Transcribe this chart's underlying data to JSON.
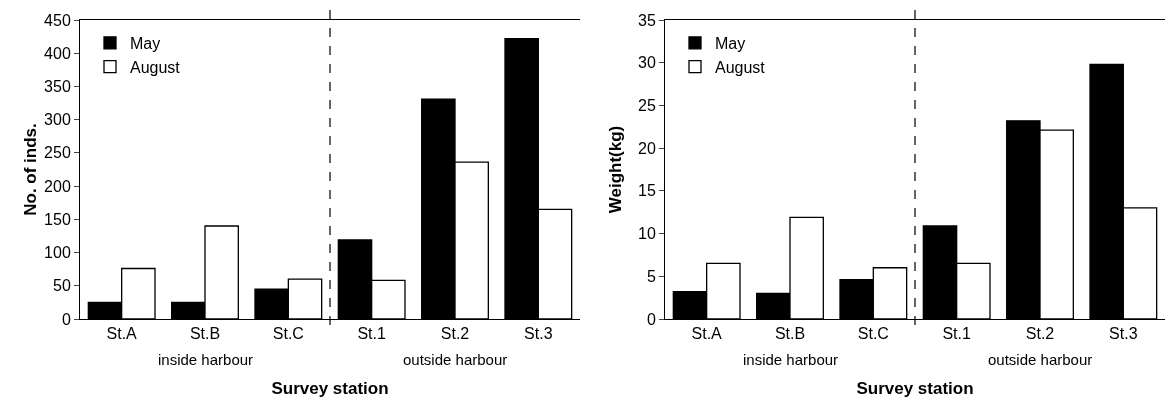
{
  "chart_data": [
    {
      "type": "bar",
      "xlabel": "Survey station",
      "ylabel": "No. of inds.",
      "categories": [
        "St.A",
        "St.B",
        "St.C",
        "St.1",
        "St.2",
        "St.3"
      ],
      "series": [
        {
          "name": "May",
          "color": "#000000",
          "values": [
            25,
            25,
            45,
            119,
            331,
            422
          ]
        },
        {
          "name": "August",
          "color": "#ffffff",
          "values": [
            76,
            140,
            60,
            58,
            236,
            165
          ]
        }
      ],
      "ylim": [
        0,
        450
      ],
      "yticks": [
        0,
        50,
        100,
        150,
        200,
        250,
        300,
        350,
        400,
        450
      ],
      "annotations": [
        "inside harbour",
        "outside harbour"
      ],
      "grid": false,
      "legend": "top left"
    },
    {
      "type": "bar",
      "xlabel": "Survey station",
      "ylabel": "Weight(kg)",
      "categories": [
        "St.A",
        "St.B",
        "St.C",
        "St.1",
        "St.2",
        "St.3"
      ],
      "series": [
        {
          "name": "May",
          "color": "#000000",
          "values": [
            3.2,
            3.0,
            4.6,
            10.9,
            23.2,
            29.8
          ]
        },
        {
          "name": "August",
          "color": "#ffffff",
          "values": [
            6.5,
            11.9,
            6.0,
            6.5,
            22.1,
            13.0
          ]
        }
      ],
      "ylim": [
        0,
        35
      ],
      "yticks": [
        0,
        5,
        10,
        15,
        20,
        25,
        30,
        35
      ],
      "annotations": [
        "inside harbour",
        "outside harbour"
      ],
      "grid": false,
      "legend": "top left"
    }
  ]
}
